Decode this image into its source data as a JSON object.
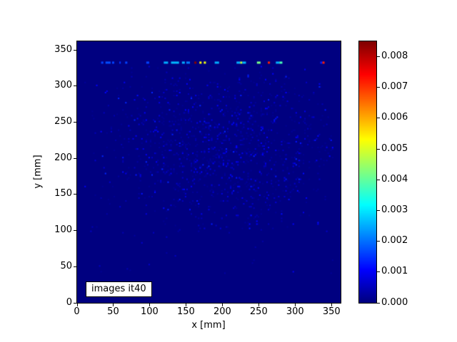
{
  "figure": {
    "background": "#ffffff"
  },
  "chart_data": {
    "type": "heatmap",
    "title": "",
    "xlabel": "x [mm]",
    "ylabel": "y [mm]",
    "annotation": "images it40",
    "x_ticks": [
      0,
      50,
      100,
      150,
      200,
      250,
      300,
      350
    ],
    "y_ticks": [
      0,
      50,
      100,
      150,
      200,
      250,
      300,
      350
    ],
    "x_range_mm": [
      0,
      362
    ],
    "y_range_mm": [
      0,
      362
    ],
    "grid_cell_mm": 2,
    "colormap": "jet",
    "vmin": 0.0,
    "vmax": 0.0085,
    "background_value": 0.0,
    "background_color": "#000080",
    "bright_row": {
      "y_mm": 331,
      "height_mm": 3,
      "comment": "row of hot pixels near y=332 mm; x_mm = segment start, w_mm = width, value = intensity",
      "points": [
        {
          "x_mm": 33,
          "w_mm": 3,
          "value": 0.0016
        },
        {
          "x_mm": 39,
          "w_mm": 7,
          "value": 0.0017
        },
        {
          "x_mm": 48,
          "w_mm": 3,
          "value": 0.0016
        },
        {
          "x_mm": 58,
          "w_mm": 2,
          "value": 0.0015
        },
        {
          "x_mm": 66,
          "w_mm": 3,
          "value": 0.0016
        },
        {
          "x_mm": 95,
          "w_mm": 4,
          "value": 0.0016
        },
        {
          "x_mm": 119,
          "w_mm": 6,
          "value": 0.0025
        },
        {
          "x_mm": 129,
          "w_mm": 11,
          "value": 0.0026
        },
        {
          "x_mm": 144,
          "w_mm": 4,
          "value": 0.0025
        },
        {
          "x_mm": 150,
          "w_mm": 5,
          "value": 0.0021
        },
        {
          "x_mm": 161,
          "w_mm": 3,
          "value": 0.0084
        },
        {
          "x_mm": 168,
          "w_mm": 3,
          "value": 0.0053
        },
        {
          "x_mm": 174,
          "w_mm": 3,
          "value": 0.0052
        },
        {
          "x_mm": 189,
          "w_mm": 6,
          "value": 0.0025
        },
        {
          "x_mm": 219,
          "w_mm": 5,
          "value": 0.0025
        },
        {
          "x_mm": 224,
          "w_mm": 3,
          "value": 0.0048
        },
        {
          "x_mm": 227,
          "w_mm": 5,
          "value": 0.0026
        },
        {
          "x_mm": 247,
          "w_mm": 5,
          "value": 0.0042
        },
        {
          "x_mm": 262,
          "w_mm": 3,
          "value": 0.0072
        },
        {
          "x_mm": 273,
          "w_mm": 5,
          "value": 0.0025
        },
        {
          "x_mm": 278,
          "w_mm": 4,
          "value": 0.0038
        },
        {
          "x_mm": 334,
          "w_mm": 3,
          "value": 0.0013
        },
        {
          "x_mm": 337,
          "w_mm": 3,
          "value": 0.0072
        }
      ]
    },
    "noise": {
      "description": "sparse faint blue speckle over dark background, densest in central region, fading toward edges, absent below y~100mm and above y~335mm",
      "count": 1400,
      "x_center_mm": 205,
      "x_sigma_mm": 80,
      "y_center_mm": 215,
      "y_sigma_mm": 58,
      "x_min_mm": 10,
      "x_max_mm": 352,
      "y_min_mm": 95,
      "y_max_mm": 328,
      "stray_count": 30,
      "stray_y_min_mm": 40,
      "stray_y_max_mm": 115,
      "value_min": 0.00015,
      "value_max": 0.0014,
      "seed": 7
    }
  },
  "colorbar": {
    "tick_labels": [
      "0.000",
      "0.001",
      "0.002",
      "0.003",
      "0.004",
      "0.005",
      "0.006",
      "0.007",
      "0.008"
    ],
    "vmax": 0.0085,
    "top_color": "#800000",
    "bottom_color": "#000080"
  }
}
